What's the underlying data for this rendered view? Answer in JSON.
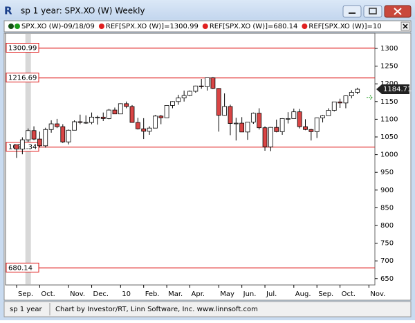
{
  "window": {
    "title": "sp 1 year: SPX.XO (W) Weekly",
    "status": "sp 1 year",
    "credit": "Chart by Investor/RT, Linn Software, Inc. www.linnsoft.com"
  },
  "chart_data": {
    "type": "candlestick",
    "legend": [
      {
        "name": "SPX.XO (W)-09/18/09",
        "color": "#1a9a1a"
      },
      {
        "name": "REF[SPX.XO (W)]=1300.99",
        "color": "#e02020"
      },
      {
        "name": "REF[SPX.XO (W)]=680.14",
        "color": "#e02020"
      },
      {
        "name": "REF[SPX.XO (W)]=10",
        "color": "#e02020"
      }
    ],
    "categories": [
      "Sep.",
      null,
      null,
      null,
      "Oct.",
      null,
      null,
      null,
      null,
      "Nov.",
      null,
      null,
      null,
      "Dec.",
      null,
      null,
      null,
      null,
      "10",
      null,
      null,
      null,
      "Feb.",
      null,
      null,
      null,
      "Mar.",
      null,
      null,
      null,
      "Apr.",
      null,
      null,
      null,
      null,
      "May",
      null,
      null,
      null,
      "Jun.",
      null,
      null,
      null,
      "Jul.",
      null,
      null,
      null,
      null,
      "Aug.",
      null,
      null,
      null,
      "Sep.",
      null,
      null,
      null,
      "Oct.",
      null,
      null,
      null,
      null,
      "Nov."
    ],
    "open": [
      1028,
      1016,
      1042,
      1068,
      1044,
      1025,
      1071,
      1087,
      1079,
      1036,
      1069,
      1093,
      1091,
      1091,
      1106,
      1106,
      1102,
      1126,
      1115,
      1144,
      1136,
      1091,
      1073,
      1066,
      1075,
      1109,
      1104,
      1139,
      1150,
      1160,
      1167,
      1179,
      1194,
      1192,
      1217,
      1187,
      1111,
      1136,
      1088,
      1089,
      1064,
      1092,
      1117,
      1076,
      1022,
      1077,
      1065,
      1102,
      1102,
      1121,
      1079,
      1071,
      1065,
      1104,
      1110,
      1125,
      1149,
      1146,
      1166,
      1176,
      null,
      null
    ],
    "high": [
      1028,
      1049,
      1074,
      1080,
      1065,
      1076,
      1097,
      1101,
      1086,
      1071,
      1097,
      1113,
      1111,
      1119,
      1110,
      1119,
      1129,
      1133,
      1145,
      1150,
      1140,
      1104,
      1103,
      1080,
      1112,
      1112,
      1139,
      1151,
      1169,
      1181,
      1181,
      1195,
      1214,
      1217,
      1219,
      1188,
      1173,
      1141,
      1104,
      1106,
      1092,
      1119,
      1131,
      1080,
      1078,
      1099,
      1103,
      1120,
      1130,
      1129,
      1100,
      1073,
      1105,
      1112,
      1131,
      1149,
      1158,
      1167,
      1182,
      1189,
      null,
      null
    ],
    "low": [
      991,
      1001,
      1036,
      1041,
      1020,
      1020,
      1062,
      1075,
      1033,
      1029,
      1069,
      1086,
      1087,
      1086,
      1085,
      1095,
      1100,
      1115,
      1115,
      1131,
      1090,
      1071,
      1044,
      1056,
      1075,
      1086,
      1104,
      1131,
      1141,
      1150,
      1165,
      1175,
      1186,
      1181,
      1185,
      1065,
      1110,
      1055,
      1040,
      1064,
      1042,
      1087,
      1071,
      1011,
      1010,
      1063,
      1056,
      1088,
      1105,
      1074,
      1069,
      1040,
      1047,
      1091,
      1110,
      1122,
      1132,
      1131,
      1159,
      1171,
      null,
      null
    ],
    "close": [
      1016,
      1042,
      1068,
      1044,
      1025,
      1071,
      1087,
      1079,
      1036,
      1069,
      1093,
      1091,
      1091,
      1106,
      1106,
      1102,
      1126,
      1115,
      1144,
      1136,
      1091,
      1073,
      1066,
      1075,
      1109,
      1104,
      1139,
      1150,
      1160,
      1167,
      1179,
      1194,
      1192,
      1217,
      1187,
      1111,
      1136,
      1088,
      1089,
      1064,
      1092,
      1117,
      1076,
      1022,
      1077,
      1065,
      1102,
      1102,
      1121,
      1079,
      1071,
      1065,
      1104,
      1110,
      1125,
      1149,
      1146,
      1166,
      1176,
      1184.71,
      null,
      null
    ],
    "up_color": "#ffffff",
    "down_color": "#d94545",
    "ref_lines": [
      1300.99,
      1216.69,
      1021.34,
      680.14
    ],
    "ref_color": "#e02020",
    "last_price": 1184.71,
    "ylim": [
      632,
      1343
    ],
    "yticks": [
      650,
      700,
      750,
      800,
      850,
      900,
      950,
      1000,
      1050,
      1100,
      1150,
      1200,
      1250,
      1300
    ]
  }
}
